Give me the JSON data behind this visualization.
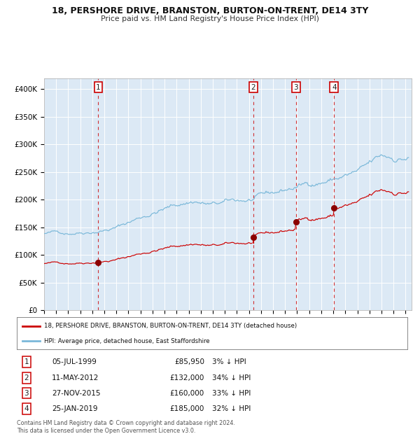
{
  "title": "18, PERSHORE DRIVE, BRANSTON, BURTON-ON-TRENT, DE14 3TY",
  "subtitle": "Price paid vs. HM Land Registry's House Price Index (HPI)",
  "bg_color": "#dce9f5",
  "red_line_label": "18, PERSHORE DRIVE, BRANSTON, BURTON-ON-TRENT, DE14 3TY (detached house)",
  "blue_line_label": "HPI: Average price, detached house, East Staffordshire",
  "footer": "Contains HM Land Registry data © Crown copyright and database right 2024.\nThis data is licensed under the Open Government Licence v3.0.",
  "sales": [
    {
      "num": 1,
      "date": "05-JUL-1999",
      "year": 1999.5,
      "price": 85950,
      "pct": "3% ↓ HPI"
    },
    {
      "num": 2,
      "date": "11-MAY-2012",
      "year": 2012.35,
      "price": 132000,
      "pct": "34% ↓ HPI"
    },
    {
      "num": 3,
      "date": "27-NOV-2015",
      "year": 2015.9,
      "price": 160000,
      "pct": "33% ↓ HPI"
    },
    {
      "num": 4,
      "date": "25-JAN-2019",
      "year": 2019.07,
      "price": 185000,
      "pct": "32% ↓ HPI"
    }
  ],
  "ylim": [
    0,
    420000
  ],
  "yticks": [
    0,
    50000,
    100000,
    150000,
    200000,
    250000,
    300000,
    350000,
    400000
  ],
  "ytick_labels": [
    "£0",
    "£50K",
    "£100K",
    "£150K",
    "£200K",
    "£250K",
    "£300K",
    "£350K",
    "£400K"
  ],
  "xmin": 1995,
  "xmax": 2025.5
}
